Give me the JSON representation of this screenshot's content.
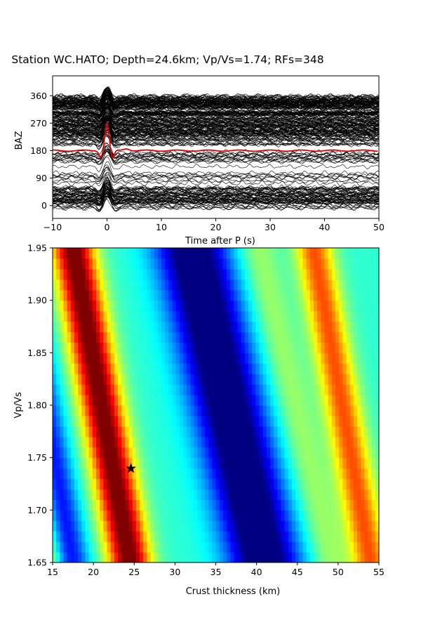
{
  "figure": {
    "title": "Station WC.HATO; Depth=24.6km; Vp/Vs=1.74; RFs=348"
  },
  "chart_data": [
    {
      "type": "line",
      "title": "",
      "xlabel": "Time after P (s)",
      "ylabel": "BAZ",
      "xlim": [
        -10,
        50
      ],
      "ylim": [
        -42,
        425
      ],
      "xticks": [
        "−10",
        "0",
        "10",
        "20",
        "30",
        "40",
        "50"
      ],
      "xtick_values": [
        -10,
        0,
        10,
        20,
        30,
        40,
        50
      ],
      "yticks": [
        "0",
        "90",
        "180",
        "270",
        "360"
      ],
      "ytick_values": [
        0,
        90,
        180,
        270,
        360
      ],
      "grid": false,
      "trace_count": 348,
      "trace_color": "#000000",
      "stack_color": "#e00000",
      "stack_baseline_baz": 180,
      "stack_peak_time": 0,
      "stack_peak_baz": 268,
      "series": [
        {
          "baz_range": [
            330,
            360
          ],
          "density": "high"
        },
        {
          "baz_range": [
            180,
            330
          ],
          "density": "high"
        },
        {
          "baz_range": [
            60,
            180
          ],
          "density": "low"
        },
        {
          "baz_range": [
            -10,
            60
          ],
          "density": "medium"
        }
      ]
    },
    {
      "type": "heatmap",
      "title": "",
      "xlabel": "Crust thickness (km)",
      "ylabel": "Vp/Vs",
      "xlim": [
        15,
        55
      ],
      "ylim": [
        1.65,
        1.95
      ],
      "xticks": [
        "15",
        "20",
        "25",
        "30",
        "35",
        "40",
        "45",
        "50",
        "55"
      ],
      "xtick_values": [
        15,
        20,
        25,
        30,
        35,
        40,
        45,
        50,
        55
      ],
      "yticks": [
        "1.65",
        "1.70",
        "1.75",
        "1.80",
        "1.85",
        "1.90",
        "1.95"
      ],
      "ytick_values": [
        1.65,
        1.7,
        1.75,
        1.8,
        1.85,
        1.9,
        1.95
      ],
      "colormap": "jet",
      "grid": false,
      "best_fit": {
        "thickness_km": 24.6,
        "vpvs": 1.74,
        "marker": "star-icon"
      },
      "bands": [
        {
          "name": "red-band",
          "thickness_at_1.65": 24.5,
          "thickness_at_1.95": 17.5
        },
        {
          "name": "blue-band",
          "thickness_at_1.65": 41,
          "thickness_at_1.95": 32
        },
        {
          "name": "red-band-2",
          "thickness_at_1.65": 54,
          "thickness_at_1.95": 47
        }
      ]
    }
  ]
}
